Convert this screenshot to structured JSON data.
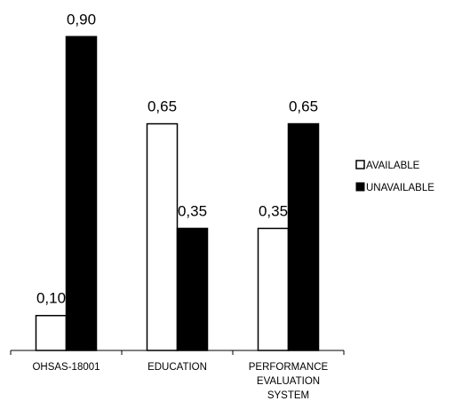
{
  "chart_data": {
    "type": "bar",
    "title": "",
    "xlabel": "",
    "ylabel": "",
    "categories": [
      [
        "OHSAS-18001"
      ],
      [
        "EDUCATION"
      ],
      [
        "PERFORMANCE",
        "EVALUATION",
        "SYSTEM"
      ]
    ],
    "series": [
      {
        "name": "AVAILABLE",
        "values": [
          0.1,
          0.65,
          0.35
        ],
        "labels": [
          "0,10",
          "0,65",
          "0,35"
        ],
        "fill": "#ffffff"
      },
      {
        "name": "UNAVAILABLE",
        "values": [
          0.9,
          0.35,
          0.65
        ],
        "labels": [
          "0,90",
          "0,35",
          "0,65"
        ],
        "fill": "#000000"
      }
    ],
    "ylim": [
      0,
      1
    ],
    "grid": false,
    "legend_position": "right",
    "colors": {
      "available": "#ffffff",
      "unavailable": "#000000",
      "outline": "#000000"
    }
  }
}
